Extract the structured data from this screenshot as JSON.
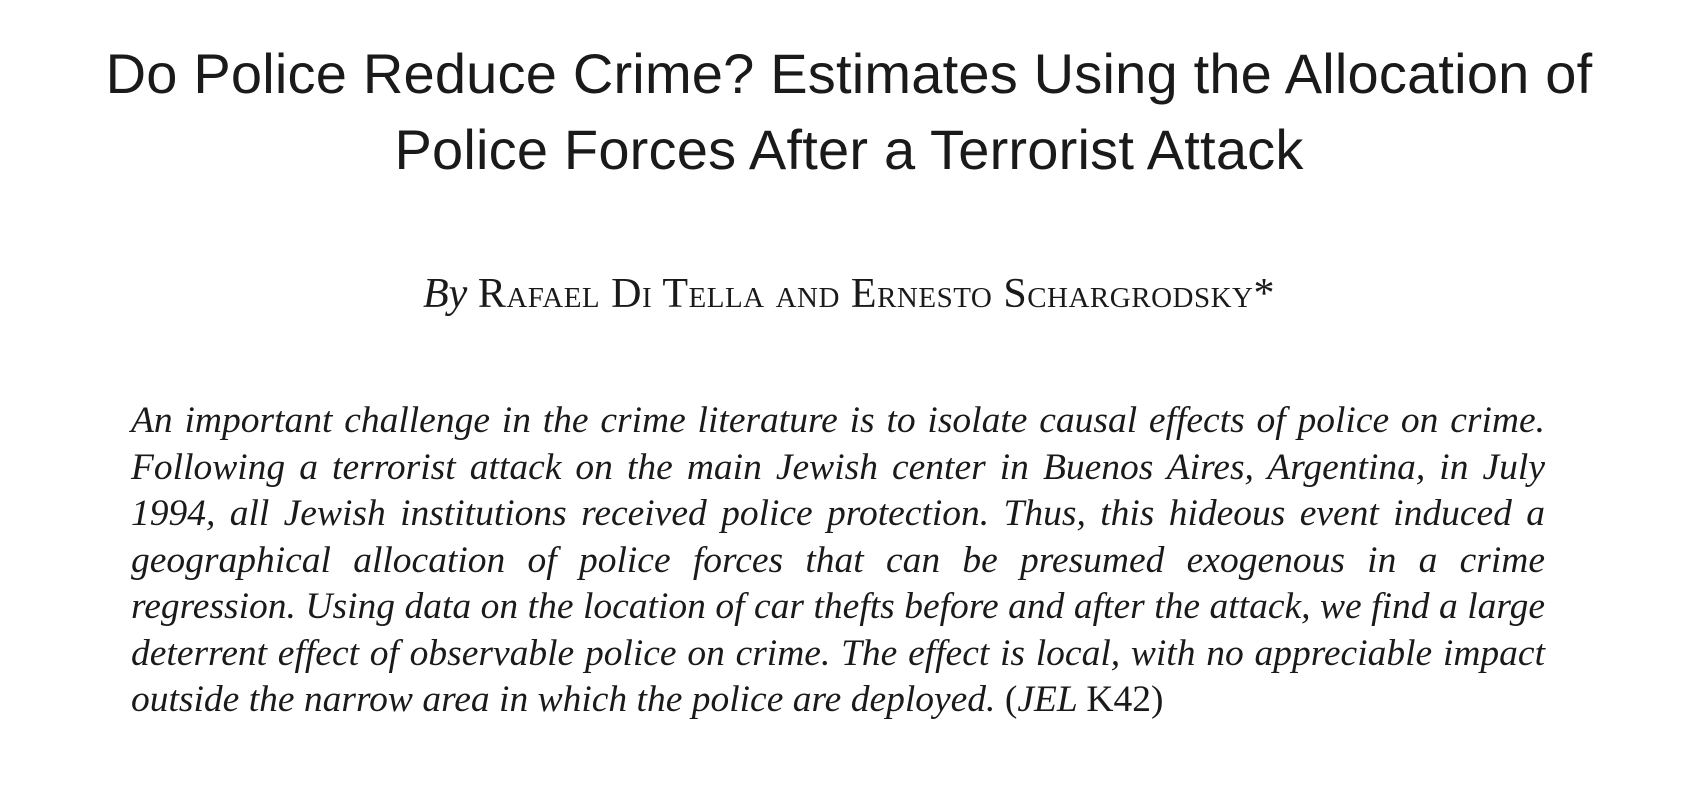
{
  "title": {
    "line1": "Do Police Reduce Crime? Estimates Using the Allocation of",
    "line2": "Police Forces After a Terrorist Attack"
  },
  "byline": {
    "by": "By",
    "authors": "Rafael Di Tella and Ernesto Schargrodsky*"
  },
  "abstract": {
    "text": "An important challenge in the crime literature is to isolate causal effects of police on crime. Following a terrorist attack on the main Jewish center in Buenos Aires, Argentina, in July 1994, all Jewish institutions received police protection. Thus, this hideous event induced a geographical allocation of police forces that can be presumed exogenous in a crime regression. Using data on the location of car thefts before and after the attack, we find a large deterrent effect of observable police on crime. The effect is local, with no appreciable impact outside the narrow area in which the police are deployed.",
    "jel_open": "(",
    "jel_label": "JEL",
    "jel_code": "K42",
    "jel_close": ")"
  }
}
